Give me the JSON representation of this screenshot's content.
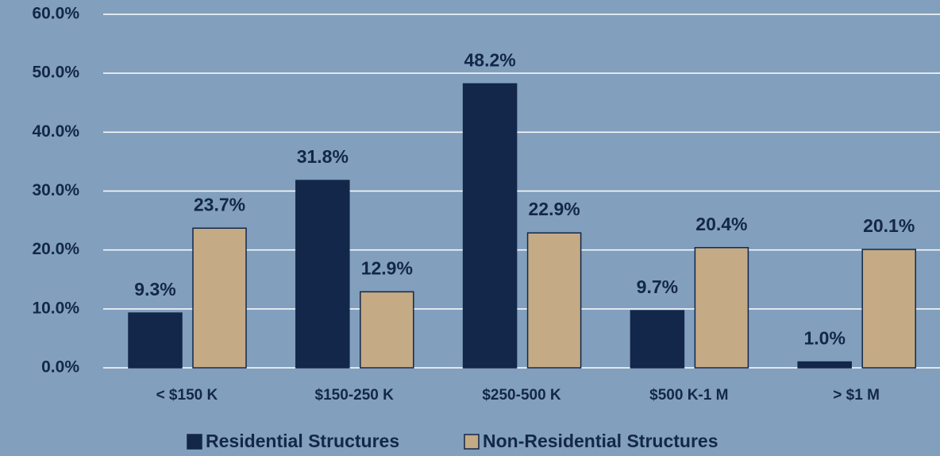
{
  "chart_data": {
    "type": "bar",
    "categories": [
      "< $150 K",
      "$150-250 K",
      "$250-500 K",
      "$500 K-1 M",
      "> $1 M"
    ],
    "series": [
      {
        "name": "Residential Structures",
        "color": "#13274a",
        "values": [
          9.3,
          31.8,
          48.2,
          9.7,
          1.0
        ],
        "value_labels": [
          "9.3%",
          "31.8%",
          "48.2%",
          "9.7%",
          "1.0%"
        ]
      },
      {
        "name": "Non-Residential Structures",
        "color": "#c4aa85",
        "values": [
          23.7,
          12.9,
          22.9,
          20.4,
          20.1
        ],
        "value_labels": [
          "23.7%",
          "12.9%",
          "22.9%",
          "20.4%",
          "20.1%"
        ]
      }
    ],
    "ylim": [
      0,
      60
    ],
    "yticks": [
      {
        "value": 0,
        "label": "0.0%"
      },
      {
        "value": 10,
        "label": "10.0%"
      },
      {
        "value": 20,
        "label": "20.0%"
      },
      {
        "value": 30,
        "label": "30.0%"
      },
      {
        "value": 40,
        "label": "40.0%"
      },
      {
        "value": 50,
        "label": "50.0%"
      },
      {
        "value": 60,
        "label": "60.0%"
      }
    ],
    "grid": true,
    "legend": "bottom"
  }
}
